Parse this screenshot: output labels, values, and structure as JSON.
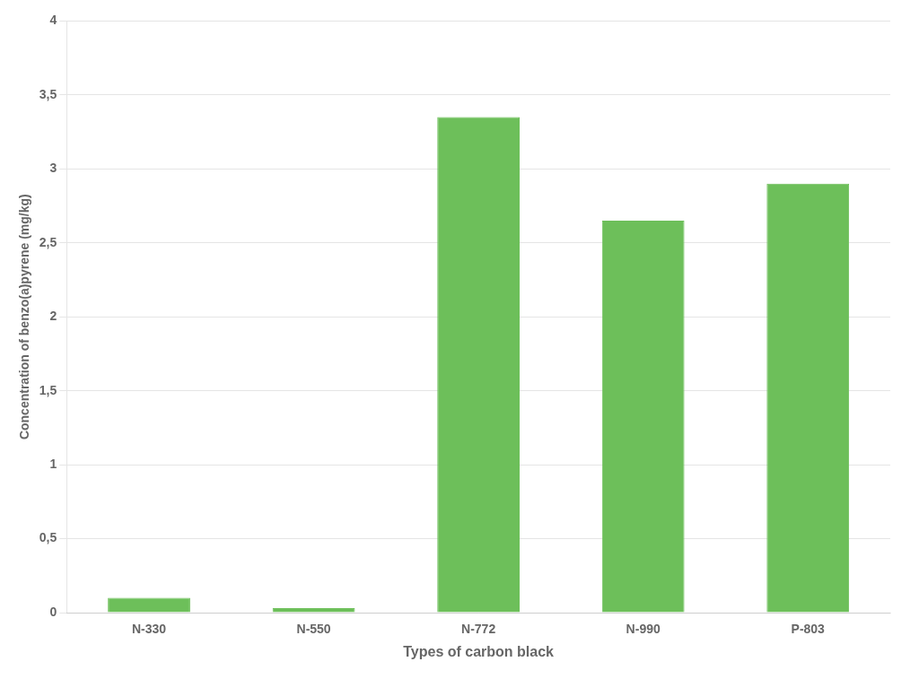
{
  "chart_data": {
    "type": "bar",
    "categories": [
      "N-330",
      "N-550",
      "N-772",
      "N-990",
      "P-803"
    ],
    "values": [
      0.1,
      0.03,
      3.35,
      2.65,
      2.9
    ],
    "color": "#6dbf5a",
    "xlabel": "Types of carbon black",
    "ylabel": "Concentration of benzo(a)pyrene (mg/kg)",
    "ylim": [
      0,
      4
    ],
    "yticks": [
      0,
      {
        "value": 0.5,
        "label": "0,5"
      },
      1,
      {
        "value": 1.5,
        "label": "1,5"
      },
      2,
      {
        "value": 2.5,
        "label": "2,5"
      },
      3,
      {
        "value": 3.5,
        "label": "3,5"
      },
      4
    ],
    "grid": true
  }
}
